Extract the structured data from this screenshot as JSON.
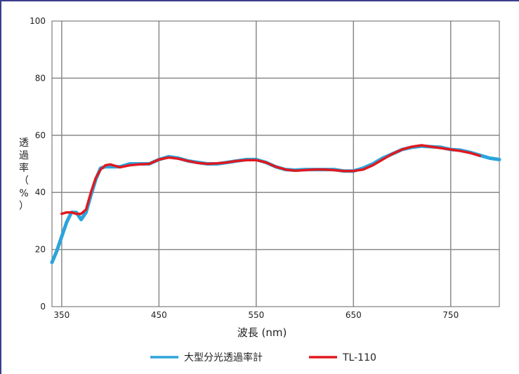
{
  "chart_data": {
    "type": "line",
    "xlabel": "波長 (nm)",
    "ylabel": "透過率（%）",
    "xlim": [
      340,
      800
    ],
    "ylim": [
      0,
      100
    ],
    "x_ticks": [
      350,
      450,
      550,
      650,
      750
    ],
    "y_ticks": [
      0,
      20,
      40,
      60,
      80,
      100
    ],
    "grid": true,
    "legend_position": "bottom",
    "series": [
      {
        "name": "大型分光透過率計",
        "color": "#2ba4dc",
        "x": [
          340,
          345,
          350,
          355,
          360,
          365,
          370,
          375,
          380,
          385,
          390,
          395,
          400,
          410,
          420,
          430,
          440,
          450,
          460,
          470,
          480,
          490,
          500,
          510,
          520,
          530,
          540,
          550,
          560,
          570,
          580,
          590,
          600,
          610,
          620,
          630,
          640,
          650,
          660,
          670,
          680,
          690,
          700,
          710,
          720,
          730,
          740,
          750,
          760,
          770,
          780,
          790,
          800
        ],
        "values": [
          15.5,
          19.5,
          24.5,
          29.5,
          33.0,
          33.0,
          30.5,
          33.0,
          39.0,
          44.5,
          48.5,
          49.0,
          49.0,
          49.0,
          50.0,
          50.0,
          50.0,
          51.5,
          52.5,
          52.0,
          51.0,
          50.5,
          50.0,
          50.0,
          50.5,
          51.0,
          51.5,
          51.5,
          50.5,
          49.0,
          48.0,
          47.8,
          48.0,
          48.0,
          48.0,
          48.0,
          47.5,
          47.5,
          48.5,
          50.0,
          52.0,
          53.5,
          55.0,
          55.8,
          56.2,
          56.0,
          55.8,
          55.0,
          54.8,
          54.0,
          53.0,
          52.0,
          51.5
        ]
      },
      {
        "name": "TL-110",
        "color": "#e0191f",
        "x": [
          350,
          355,
          360,
          365,
          370,
          375,
          380,
          385,
          390,
          395,
          400,
          410,
          420,
          430,
          440,
          450,
          460,
          470,
          480,
          490,
          500,
          510,
          520,
          530,
          540,
          550,
          560,
          570,
          580,
          590,
          600,
          610,
          620,
          630,
          640,
          650,
          660,
          670,
          680,
          690,
          700,
          710,
          720,
          730,
          740,
          750,
          760,
          770,
          780
        ],
        "values": [
          32.5,
          33.0,
          33.0,
          32.5,
          32.5,
          34.0,
          40.0,
          45.0,
          48.0,
          49.5,
          49.8,
          48.8,
          49.5,
          49.8,
          50.0,
          51.5,
          52.2,
          51.8,
          51.0,
          50.3,
          50.0,
          50.2,
          50.5,
          51.0,
          51.3,
          51.3,
          50.5,
          49.0,
          48.0,
          47.6,
          47.8,
          48.0,
          48.0,
          47.8,
          47.5,
          47.5,
          48.0,
          49.5,
          51.5,
          53.5,
          55.0,
          56.0,
          56.5,
          56.0,
          55.5,
          55.0,
          54.5,
          53.8,
          52.8
        ]
      }
    ]
  }
}
